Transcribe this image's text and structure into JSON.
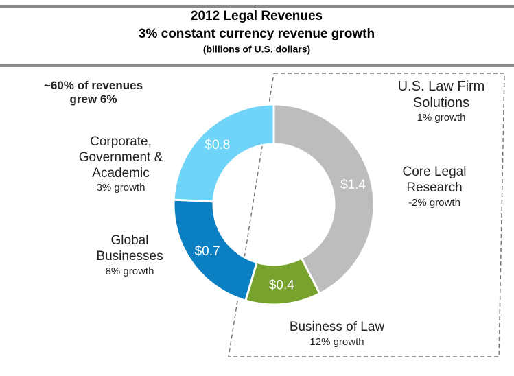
{
  "chart_data": {
    "type": "donut",
    "title": "2012 Legal Revenues",
    "subtitle": "3% constant currency revenue growth",
    "unit_note": "(billions of U.S. dollars)",
    "categories": [
      "Core Legal Research",
      "Business of Law",
      "Global Businesses",
      "Corporate, Government & Academic"
    ],
    "values": [
      1.4,
      0.4,
      0.7,
      0.8
    ],
    "value_labels": [
      "$1.4",
      "$0.4",
      "$0.7",
      "$0.8"
    ],
    "growth_labels": [
      "-2% growth",
      "12% growth",
      "8% growth",
      "3% growth"
    ],
    "colors": [
      "#bdbdbd",
      "#77a22d",
      "#0a7fc2",
      "#6fd4f8"
    ],
    "annotations": [
      {
        "text": "~60% of revenues grew 6%"
      },
      {
        "text": "U.S. Law Firm Solutions",
        "subtext": "1% growth"
      }
    ]
  }
}
